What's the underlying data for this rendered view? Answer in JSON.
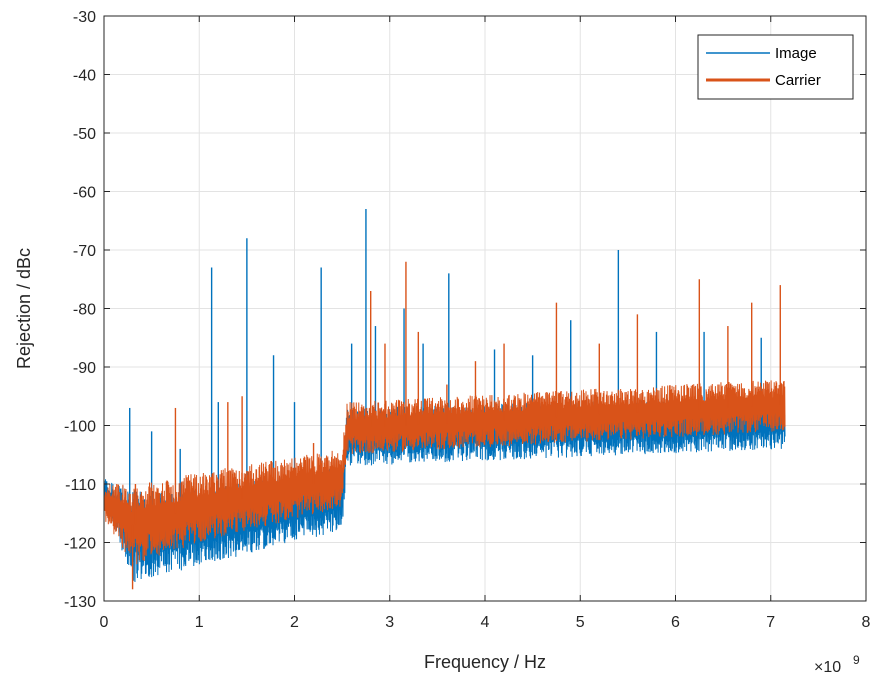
{
  "chart_data": {
    "type": "line",
    "xlabel": "Frequency / Hz",
    "ylabel": "Rejection / dBc",
    "x_exponent": {
      "base": "×10",
      "power": "9"
    },
    "xlim": [
      0,
      8
    ],
    "ylim": [
      -130,
      -30
    ],
    "x_ticks": [
      "0",
      "1",
      "2",
      "3",
      "4",
      "5",
      "6",
      "7",
      "8"
    ],
    "y_ticks": [
      "-30",
      "-40",
      "-50",
      "-60",
      "-70",
      "-80",
      "-90",
      "-100",
      "-110",
      "-120",
      "-130"
    ],
    "grid": true,
    "legend_position": "top-right",
    "x_range_data": [
      0,
      7.15
    ],
    "series": [
      {
        "name": "Image",
        "color": "#0072BD",
        "envelope": [
          {
            "x": 0.0,
            "lo": -112,
            "hi": -109
          },
          {
            "x": 0.3,
            "lo": -127,
            "hi": -111
          },
          {
            "x": 1.0,
            "lo": -124,
            "hi": -111
          },
          {
            "x": 2.5,
            "lo": -118,
            "hi": -107
          },
          {
            "x": 2.55,
            "lo": -107,
            "hi": -97
          },
          {
            "x": 7.15,
            "lo": -104,
            "hi": -95
          }
        ],
        "spikes": [
          {
            "x": 0.27,
            "y": -97
          },
          {
            "x": 0.5,
            "y": -101
          },
          {
            "x": 0.8,
            "y": -104
          },
          {
            "x": 1.13,
            "y": -73
          },
          {
            "x": 1.2,
            "y": -96
          },
          {
            "x": 1.5,
            "y": -68
          },
          {
            "x": 1.78,
            "y": -88
          },
          {
            "x": 2.0,
            "y": -96
          },
          {
            "x": 2.28,
            "y": -73
          },
          {
            "x": 2.6,
            "y": -86
          },
          {
            "x": 2.75,
            "y": -63
          },
          {
            "x": 2.85,
            "y": -83
          },
          {
            "x": 3.15,
            "y": -80
          },
          {
            "x": 3.35,
            "y": -86
          },
          {
            "x": 3.62,
            "y": -74
          },
          {
            "x": 4.1,
            "y": -87
          },
          {
            "x": 4.5,
            "y": -88
          },
          {
            "x": 4.9,
            "y": -82
          },
          {
            "x": 5.4,
            "y": -70
          },
          {
            "x": 5.8,
            "y": -84
          },
          {
            "x": 6.3,
            "y": -84
          },
          {
            "x": 6.9,
            "y": -85
          }
        ]
      },
      {
        "name": "Carrier",
        "color": "#D95319",
        "envelope": [
          {
            "x": 0.0,
            "lo": -116,
            "hi": -110
          },
          {
            "x": 0.3,
            "lo": -124,
            "hi": -110
          },
          {
            "x": 1.0,
            "lo": -120,
            "hi": -108
          },
          {
            "x": 2.5,
            "lo": -114,
            "hi": -104
          },
          {
            "x": 2.55,
            "lo": -105,
            "hi": -96
          },
          {
            "x": 7.15,
            "lo": -101,
            "hi": -92
          }
        ],
        "spikes": [
          {
            "x": 0.3,
            "y": -128
          },
          {
            "x": 0.33,
            "y": -110
          },
          {
            "x": 0.75,
            "y": -97
          },
          {
            "x": 1.3,
            "y": -96
          },
          {
            "x": 1.45,
            "y": -95
          },
          {
            "x": 2.2,
            "y": -103
          },
          {
            "x": 2.8,
            "y": -77
          },
          {
            "x": 2.95,
            "y": -86
          },
          {
            "x": 3.17,
            "y": -72
          },
          {
            "x": 3.3,
            "y": -84
          },
          {
            "x": 3.6,
            "y": -93
          },
          {
            "x": 3.9,
            "y": -89
          },
          {
            "x": 4.2,
            "y": -86
          },
          {
            "x": 4.75,
            "y": -79
          },
          {
            "x": 5.2,
            "y": -86
          },
          {
            "x": 5.6,
            "y": -81
          },
          {
            "x": 6.25,
            "y": -75
          },
          {
            "x": 6.55,
            "y": -83
          },
          {
            "x": 6.8,
            "y": -79
          },
          {
            "x": 7.1,
            "y": -76
          }
        ]
      }
    ]
  }
}
